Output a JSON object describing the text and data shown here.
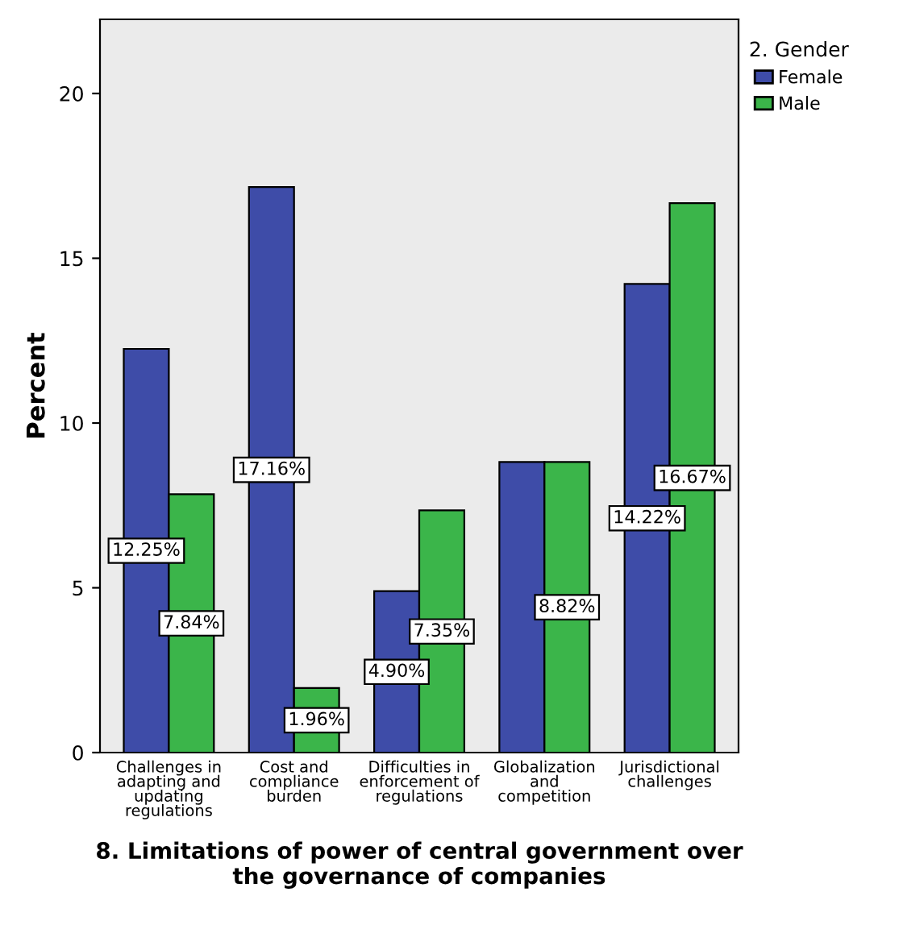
{
  "chart_data": {
    "type": "bar",
    "xlabel": "8. Limitations of power of central government over\nthe governance of companies",
    "ylabel": "Percent",
    "legend_title": "2. Gender",
    "categories": [
      "Challenges in\nadapting and\nupdating\nregulations",
      "Cost and\ncompliance\nburden",
      "Difficulties in\nenforcement of\nregulations",
      "Globalization\nand\ncompetition",
      "Jurisdictional\nchallenges"
    ],
    "series": [
      {
        "name": "Female",
        "color": "#3e4ca8",
        "values": [
          12.25,
          17.16,
          4.9,
          8.82,
          14.22
        ],
        "value_labels": [
          "12.25%",
          "17.16%",
          "4.90%",
          null,
          "14.22%"
        ]
      },
      {
        "name": "Male",
        "color": "#3bb54a",
        "values": [
          7.84,
          1.96,
          7.35,
          8.82,
          16.67
        ],
        "value_labels": [
          "7.84%",
          "1.96%",
          "7.35%",
          "8.82%",
          "16.67%"
        ]
      }
    ],
    "ylim": [
      0,
      22.25
    ],
    "yticks": [
      0,
      5,
      10,
      15,
      20
    ],
    "legend": "right",
    "grid": false
  }
}
